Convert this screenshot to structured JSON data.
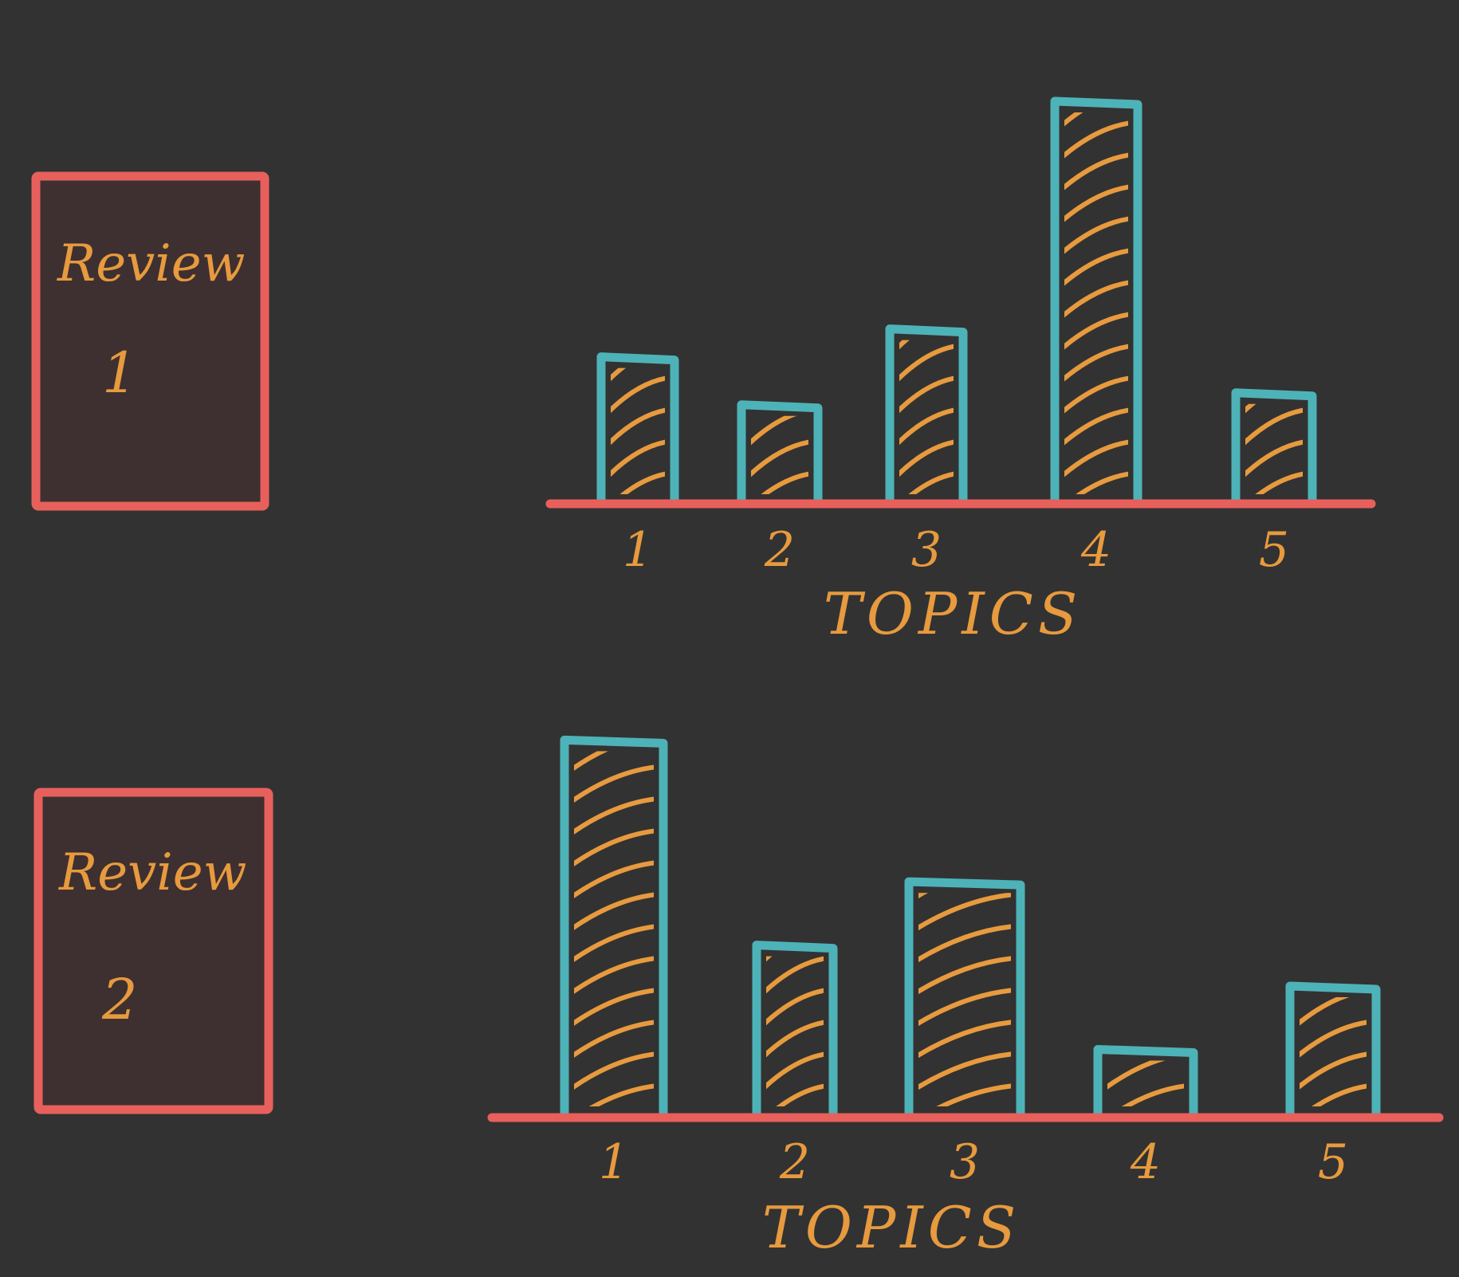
{
  "colors": {
    "background": "#323232",
    "card_fill": "#3E3030",
    "card_border": "#E8605C",
    "axis": "#E8605C",
    "bar_outline": "#4DB3B8",
    "hatch": "#E79A3E",
    "text": "#E79A3E"
  },
  "cards": [
    {
      "label": "Review",
      "number": "1"
    },
    {
      "label": "Review",
      "number": "2"
    }
  ],
  "chart_data": [
    {
      "type": "bar",
      "title": "Review 1",
      "xlabel": "TOPICS",
      "ylabel": "",
      "categories": [
        "1",
        "2",
        "3",
        "4",
        "5"
      ],
      "values": [
        3.6,
        2.4,
        4.3,
        10,
        2.7
      ],
      "ylim": [
        0,
        10.5
      ],
      "grid": false,
      "fill": "hatched"
    },
    {
      "type": "bar",
      "title": "Review 2",
      "xlabel": "TOPICS",
      "ylabel": "",
      "categories": [
        "1",
        "2",
        "3",
        "4",
        "5"
      ],
      "values": [
        10,
        4.5,
        6.2,
        1.7,
        3.4
      ],
      "ylim": [
        0,
        10.5
      ],
      "grid": false,
      "fill": "hatched"
    }
  ]
}
